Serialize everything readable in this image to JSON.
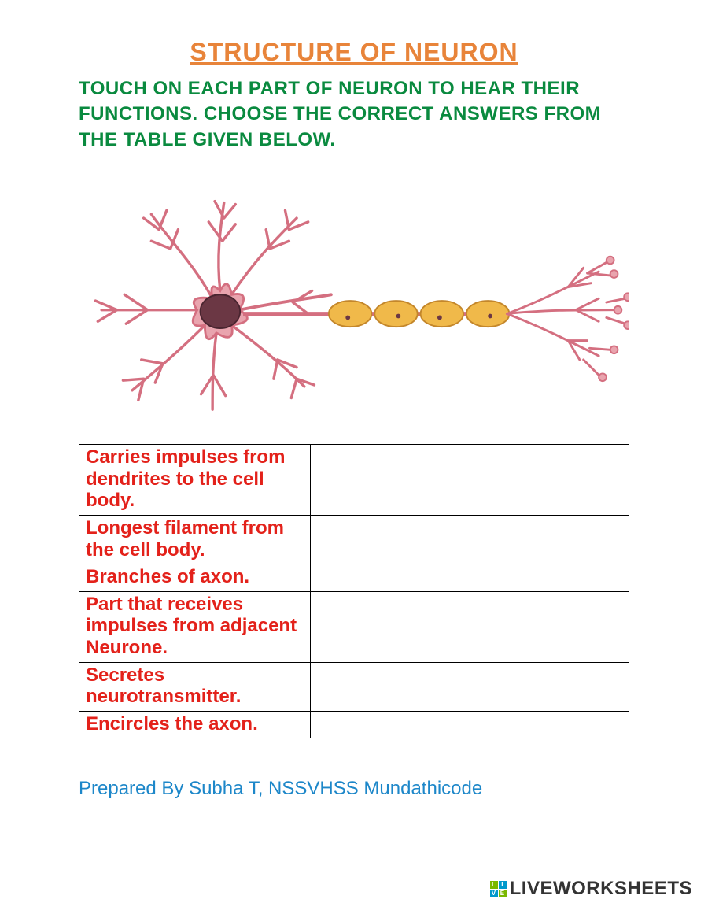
{
  "colors": {
    "title": "#e8843a",
    "instructions": "#0a8a3f",
    "table_text": "#e3211a",
    "prepared": "#1d87c9",
    "neuron_body_fill": "#e9a4ae",
    "neuron_body_stroke": "#d46f80",
    "neuron_nucleus_fill": "#6b3744",
    "neuron_nucleus_stroke": "#4a2530",
    "myelin_fill": "#f0b94a",
    "myelin_stroke": "#c4872b",
    "wm_green": "#7ab800",
    "wm_blue": "#0099cc"
  },
  "title": "STRUCTURE OF NEURON",
  "instructions": "TOUCH ON EACH PART OF NEURON TO HEAR THEIR FUNCTIONS. CHOOSE THE CORRECT ANSWERS FROM THE TABLE GIVEN BELOW.",
  "table_rows": [
    {
      "desc": "Carries impulses from dendrites to the cell body.",
      "answer": ""
    },
    {
      "desc": "Longest filament from the cell body.",
      "answer": ""
    },
    {
      "desc": "Branches of axon.",
      "answer": ""
    },
    {
      "desc": "Part that receives impulses from adjacent Neurone.",
      "answer": ""
    },
    {
      "desc": "Secretes neurotransmitter.",
      "answer": ""
    },
    {
      "desc": "Encircles the axon.",
      "answer": ""
    }
  ],
  "prepared_by": "Prepared By Subha T, NSSVHSS Mundathicode",
  "watermark_text": "LIVEWORKSHEETS",
  "watermark_squares": [
    "L",
    "I",
    "V",
    "E"
  ]
}
